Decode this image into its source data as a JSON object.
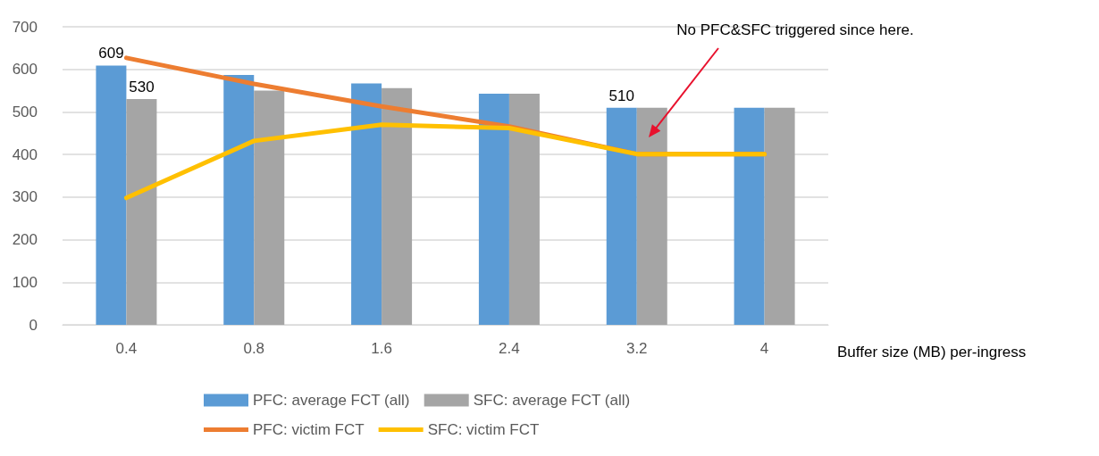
{
  "chart_data": {
    "type": "bar",
    "xlabel": "Buffer size (MB) per-ingress",
    "categories": [
      "0.4",
      "0.8",
      "1.6",
      "2.4",
      "3.2",
      "4"
    ],
    "series": [
      {
        "name": "PFC: average FCT (all)",
        "color": "#5b9bd5",
        "values": [
          609,
          587,
          567,
          543,
          510,
          510
        ],
        "value_labels": [
          "609",
          null,
          null,
          null,
          "510",
          null
        ]
      },
      {
        "name": "SFC: average FCT (all)",
        "color": "#a5a5a5",
        "values": [
          530,
          550,
          556,
          543,
          510,
          510
        ],
        "value_labels": [
          "530",
          null,
          null,
          null,
          null,
          null
        ]
      },
      {
        "name": "PFC: victim FCT",
        "type": "line",
        "color": "#ed7d31",
        "values": [
          627,
          566,
          513,
          466,
          401,
          401
        ]
      },
      {
        "name": "SFC: victim FCT",
        "type": "line",
        "color": "#ffc000",
        "values": [
          298,
          432,
          470,
          462,
          401,
          401
        ]
      }
    ],
    "ylim": [
      0,
      700
    ],
    "yticks": [
      0,
      100,
      200,
      300,
      400,
      500,
      600,
      700
    ],
    "grid": "y",
    "legend": "bottom",
    "marker": "none",
    "annotations": [
      "No PFC&SFC triggered since here."
    ]
  }
}
